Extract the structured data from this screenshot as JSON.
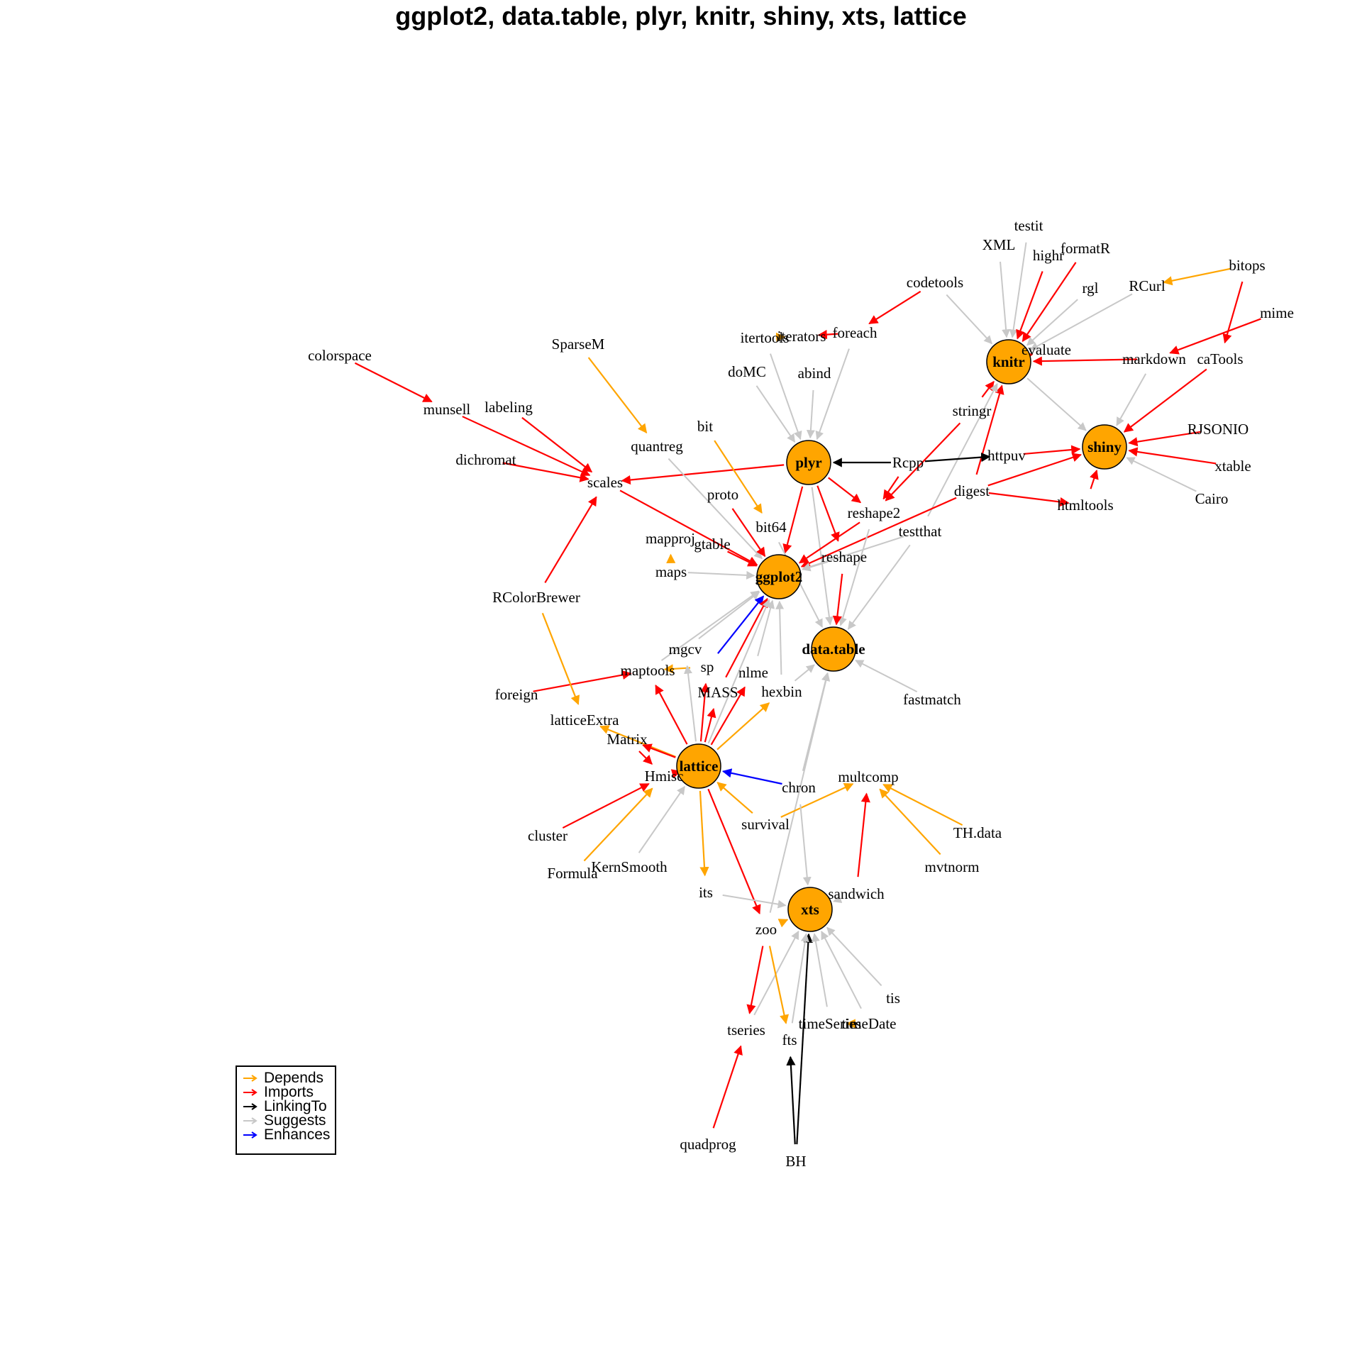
{
  "title": "ggplot2, data.table, plyr, knitr, shiny, xts, lattice",
  "colors": {
    "Depends": "#FFA500",
    "Imports": "#FF0000",
    "LinkingTo": "#000000",
    "Suggests": "#C8C8C8",
    "Enhances": "#0000FF",
    "hub_fill": "#FFA500"
  },
  "legend": [
    {
      "type": "Depends",
      "label": "Depends"
    },
    {
      "type": "Imports",
      "label": "Imports"
    },
    {
      "type": "LinkingTo",
      "label": "LinkingTo"
    },
    {
      "type": "Suggests",
      "label": "Suggests"
    },
    {
      "type": "Enhances",
      "label": "Enhances"
    }
  ],
  "hubs": [
    "ggplot2",
    "data.table",
    "plyr",
    "knitr",
    "shiny",
    "xts",
    "lattice"
  ],
  "packages": [
    "testit",
    "XML",
    "highr",
    "formatR",
    "bitops",
    "rgl",
    "RCurl",
    "codetools",
    "mime",
    "itertools",
    "iterators",
    "foreach",
    "evaluate",
    "markdown",
    "caTools",
    "colorspace",
    "SparseM",
    "doMC",
    "abind",
    "munsell",
    "labeling",
    "stringr",
    "bit",
    "quantreg",
    "RJSONIO",
    "Rcpp",
    "httpuv",
    "dichromat",
    "scales",
    "xtable",
    "proto",
    "digest",
    "Cairo",
    "htmltools",
    "reshape2",
    "bit64",
    "testthat",
    "mapproj",
    "gtable",
    "reshape",
    "maps",
    "RColorBrewer",
    "mgcv",
    "sp",
    "nlme",
    "maptools",
    "hexbin",
    "MASS",
    "fastmatch",
    "foreign",
    "latticeExtra",
    "Matrix",
    "Hmisc",
    "chron",
    "multcomp",
    "survival",
    "cluster",
    "TH.data",
    "KernSmooth",
    "Formula",
    "mvtnorm",
    "its",
    "sandwich",
    "zoo",
    "tis",
    "tseries",
    "timeSeries",
    "timeDate",
    "fts",
    "quadprog",
    "BH"
  ],
  "edges": [
    {
      "from": "testit",
      "to": "knitr",
      "type": "Suggests"
    },
    {
      "from": "XML",
      "to": "knitr",
      "type": "Suggests"
    },
    {
      "from": "highr",
      "to": "knitr",
      "type": "Imports"
    },
    {
      "from": "formatR",
      "to": "knitr",
      "type": "Imports"
    },
    {
      "from": "rgl",
      "to": "knitr",
      "type": "Suggests"
    },
    {
      "from": "RCurl",
      "to": "knitr",
      "type": "Suggests"
    },
    {
      "from": "codetools",
      "to": "knitr",
      "type": "Suggests"
    },
    {
      "from": "evaluate",
      "to": "knitr",
      "type": "Imports"
    },
    {
      "from": "markdown",
      "to": "knitr",
      "type": "Imports"
    },
    {
      "from": "stringr",
      "to": "knitr",
      "type": "Imports"
    },
    {
      "from": "digest",
      "to": "knitr",
      "type": "Imports"
    },
    {
      "from": "testthat",
      "to": "knitr",
      "type": "Suggests"
    },
    {
      "from": "bitops",
      "to": "RCurl",
      "type": "Depends"
    },
    {
      "from": "bitops",
      "to": "caTools",
      "type": "Imports"
    },
    {
      "from": "mime",
      "to": "markdown",
      "type": "Imports"
    },
    {
      "from": "codetools",
      "to": "foreach",
      "type": "Imports"
    },
    {
      "from": "itertools",
      "to": "iterators",
      "type": "Depends"
    },
    {
      "from": "foreach",
      "to": "iterators",
      "type": "Imports"
    },
    {
      "from": "knitr",
      "to": "shiny",
      "type": "Suggests"
    },
    {
      "from": "markdown",
      "to": "shiny",
      "type": "Suggests"
    },
    {
      "from": "caTools",
      "to": "shiny",
      "type": "Imports"
    },
    {
      "from": "RJSONIO",
      "to": "shiny",
      "type": "Imports"
    },
    {
      "from": "xtable",
      "to": "shiny",
      "type": "Imports"
    },
    {
      "from": "Cairo",
      "to": "shiny",
      "type": "Suggests"
    },
    {
      "from": "httpuv",
      "to": "shiny",
      "type": "Imports"
    },
    {
      "from": "digest",
      "to": "shiny",
      "type": "Imports"
    },
    {
      "from": "htmltools",
      "to": "shiny",
      "type": "Imports"
    },
    {
      "from": "Rcpp",
      "to": "httpuv",
      "type": "LinkingTo"
    },
    {
      "from": "digest",
      "to": "htmltools",
      "type": "Imports"
    },
    {
      "from": "doMC",
      "to": "plyr",
      "type": "Suggests"
    },
    {
      "from": "abind",
      "to": "plyr",
      "type": "Suggests"
    },
    {
      "from": "foreach",
      "to": "plyr",
      "type": "Suggests"
    },
    {
      "from": "itertools",
      "to": "plyr",
      "type": "Suggests"
    },
    {
      "from": "Rcpp",
      "to": "plyr",
      "type": "LinkingTo"
    },
    {
      "from": "plyr",
      "to": "scales",
      "type": "Imports"
    },
    {
      "from": "plyr",
      "to": "ggplot2",
      "type": "Imports"
    },
    {
      "from": "plyr",
      "to": "reshape2",
      "type": "Imports"
    },
    {
      "from": "plyr",
      "to": "reshape",
      "type": "Imports"
    },
    {
      "from": "plyr",
      "to": "data.table",
      "type": "Suggests"
    },
    {
      "from": "Rcpp",
      "to": "reshape2",
      "type": "Imports"
    },
    {
      "from": "stringr",
      "to": "reshape2",
      "type": "Imports"
    },
    {
      "from": "colorspace",
      "to": "munsell",
      "type": "Imports"
    },
    {
      "from": "munsell",
      "to": "scales",
      "type": "Imports"
    },
    {
      "from": "labeling",
      "to": "scales",
      "type": "Imports"
    },
    {
      "from": "dichromat",
      "to": "scales",
      "type": "Imports"
    },
    {
      "from": "RColorBrewer",
      "to": "scales",
      "type": "Imports"
    },
    {
      "from": "scales",
      "to": "ggplot2",
      "type": "Imports"
    },
    {
      "from": "SparseM",
      "to": "quantreg",
      "type": "Depends"
    },
    {
      "from": "quantreg",
      "to": "ggplot2",
      "type": "Suggests"
    },
    {
      "from": "bit",
      "to": "bit64",
      "type": "Depends"
    },
    {
      "from": "bit64",
      "to": "data.table",
      "type": "Suggests"
    },
    {
      "from": "proto",
      "to": "ggplot2",
      "type": "Imports"
    },
    {
      "from": "digest",
      "to": "ggplot2",
      "type": "Imports"
    },
    {
      "from": "reshape2",
      "to": "ggplot2",
      "type": "Imports"
    },
    {
      "from": "reshape2",
      "to": "data.table",
      "type": "Suggests"
    },
    {
      "from": "testthat",
      "to": "ggplot2",
      "type": "Suggests"
    },
    {
      "from": "testthat",
      "to": "data.table",
      "type": "Suggests"
    },
    {
      "from": "gtable",
      "to": "ggplot2",
      "type": "Imports"
    },
    {
      "from": "mapproj",
      "to": "maps",
      "type": "Depends"
    },
    {
      "from": "maps",
      "to": "ggplot2",
      "type": "Suggests"
    },
    {
      "from": "reshape",
      "to": "ggplot2",
      "type": "Suggests"
    },
    {
      "from": "reshape",
      "to": "data.table",
      "type": "Imports"
    },
    {
      "from": "mgcv",
      "to": "ggplot2",
      "type": "Suggests"
    },
    {
      "from": "sp",
      "to": "ggplot2",
      "type": "Enhances"
    },
    {
      "from": "nlme",
      "to": "ggplot2",
      "type": "Suggests"
    },
    {
      "from": "hexbin",
      "to": "ggplot2",
      "type": "Suggests"
    },
    {
      "from": "hexbin",
      "to": "data.table",
      "type": "Suggests"
    },
    {
      "from": "MASS",
      "to": "ggplot2",
      "type": "Imports"
    },
    {
      "from": "maptools",
      "to": "ggplot2",
      "type": "Suggests"
    },
    {
      "from": "lattice",
      "to": "ggplot2",
      "type": "Suggests"
    },
    {
      "from": "fastmatch",
      "to": "data.table",
      "type": "Suggests"
    },
    {
      "from": "chron",
      "to": "data.table",
      "type": "Suggests"
    },
    {
      "from": "zoo",
      "to": "data.table",
      "type": "Suggests"
    },
    {
      "from": "sp",
      "to": "maptools",
      "type": "Depends"
    },
    {
      "from": "foreign",
      "to": "maptools",
      "type": "Imports"
    },
    {
      "from": "RColorBrewer",
      "to": "latticeExtra",
      "type": "Depends"
    },
    {
      "from": "lattice",
      "to": "maptools",
      "type": "Imports"
    },
    {
      "from": "lattice",
      "to": "MASS",
      "type": "Imports"
    },
    {
      "from": "lattice",
      "to": "hexbin",
      "type": "Depends"
    },
    {
      "from": "lattice",
      "to": "latticeExtra",
      "type": "Depends"
    },
    {
      "from": "lattice",
      "to": "Matrix",
      "type": "Imports"
    },
    {
      "from": "lattice",
      "to": "Hmisc",
      "type": "Imports"
    },
    {
      "from": "lattice",
      "to": "its",
      "type": "Depends"
    },
    {
      "from": "lattice",
      "to": "zoo",
      "type": "Imports"
    },
    {
      "from": "lattice",
      "to": "nlme",
      "type": "Imports"
    },
    {
      "from": "lattice",
      "to": "mgcv",
      "type": "Suggests"
    },
    {
      "from": "lattice",
      "to": "sp",
      "type": "Imports"
    },
    {
      "from": "chron",
      "to": "lattice",
      "type": "Enhances"
    },
    {
      "from": "survival",
      "to": "lattice",
      "type": "Depends"
    },
    {
      "from": "survival",
      "to": "multcomp",
      "type": "Depends"
    },
    {
      "from": "KernSmooth",
      "to": "lattice",
      "type": "Suggests"
    },
    {
      "from": "cluster",
      "to": "Hmisc",
      "type": "Imports"
    },
    {
      "from": "Formula",
      "to": "Hmisc",
      "type": "Depends"
    },
    {
      "from": "Matrix",
      "to": "Hmisc",
      "type": "Imports"
    },
    {
      "from": "TH.data",
      "to": "multcomp",
      "type": "Depends"
    },
    {
      "from": "mvtnorm",
      "to": "multcomp",
      "type": "Depends"
    },
    {
      "from": "sandwich",
      "to": "multcomp",
      "type": "Imports"
    },
    {
      "from": "its",
      "to": "xts",
      "type": "Suggests"
    },
    {
      "from": "chron",
      "to": "xts",
      "type": "Suggests"
    },
    {
      "from": "sandwich",
      "to": "xts",
      "type": "Suggests"
    },
    {
      "from": "zoo",
      "to": "xts",
      "type": "Depends"
    },
    {
      "from": "BH",
      "to": "xts",
      "type": "LinkingTo"
    },
    {
      "from": "tis",
      "to": "xts",
      "type": "Suggests"
    },
    {
      "from": "tseries",
      "to": "xts",
      "type": "Suggests"
    },
    {
      "from": "timeSeries",
      "to": "xts",
      "type": "Suggests"
    },
    {
      "from": "timeDate",
      "to": "xts",
      "type": "Suggests"
    },
    {
      "from": "fts",
      "to": "xts",
      "type": "Suggests"
    },
    {
      "from": "timeDate",
      "to": "timeSeries",
      "type": "Depends"
    },
    {
      "from": "zoo",
      "to": "tseries",
      "type": "Imports"
    },
    {
      "from": "zoo",
      "to": "fts",
      "type": "Depends"
    },
    {
      "from": "quadprog",
      "to": "tseries",
      "type": "Imports"
    },
    {
      "from": "BH",
      "to": "fts",
      "type": "LinkingTo"
    }
  ]
}
